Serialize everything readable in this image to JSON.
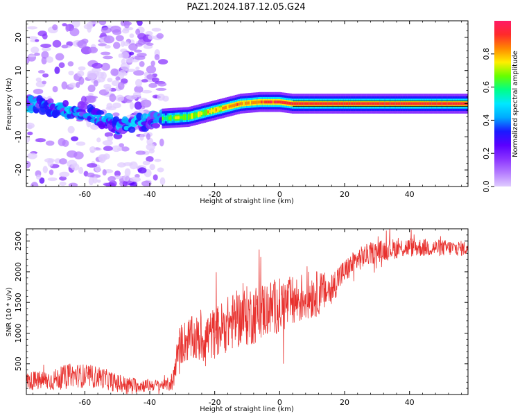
{
  "title": "PAZ1.2024.187.12.05.G24",
  "colors": {
    "snr_line": "#e8312e",
    "axis": "#000000",
    "colormap": [
      "#e0ccff",
      "#b47bff",
      "#8a33ff",
      "#5a00ff",
      "#1a1aff",
      "#00aaff",
      "#00e8ff",
      "#00ff88",
      "#66ff00",
      "#ffee00",
      "#ff8800",
      "#ff2a2a",
      "#ff1a66"
    ]
  },
  "chart_data": [
    {
      "type": "heatmap",
      "name": "spectrogram",
      "xlabel": "Height of straight line (km)",
      "ylabel": "Frequency (Hz)",
      "xlim": [
        -78,
        58
      ],
      "ylim": [
        -25,
        25
      ],
      "xticks": [
        -60,
        -40,
        -20,
        0,
        20,
        40
      ],
      "yticks": [
        -20,
        -10,
        0,
        10,
        20
      ],
      "colorbar": {
        "label": "Normalized spectral amplitude",
        "range": [
          0.0,
          1.0
        ],
        "ticks": [
          0.0,
          0.2,
          0.4,
          0.6,
          0.8
        ]
      },
      "ridge": {
        "description_points_km_hz": [
          [
            -78,
            0
          ],
          [
            -60,
            -2.5
          ],
          [
            -50,
            -7
          ],
          [
            -36,
            -4.5
          ],
          [
            -28,
            -4
          ],
          [
            -20,
            -2
          ],
          [
            -12,
            0
          ],
          [
            -6,
            0.5
          ],
          [
            0,
            0.5
          ],
          [
            4,
            0
          ],
          [
            58,
            0
          ]
        ]
      },
      "noise_region_km": [
        -78,
        -36
      ]
    },
    {
      "type": "line",
      "name": "snr",
      "xlabel": "Height of straight line (km)",
      "ylabel": "SNR (10 * v/v)",
      "xlim": [
        -78,
        58
      ],
      "ylim": [
        0,
        2700
      ],
      "xticks": [
        -60,
        -40,
        -20,
        0,
        20,
        40
      ],
      "yticks": [
        500,
        1000,
        1500,
        2000,
        2500
      ],
      "trend_points": [
        [
          -78,
          220
        ],
        [
          -70,
          230
        ],
        [
          -65,
          320
        ],
        [
          -60,
          300
        ],
        [
          -55,
          280
        ],
        [
          -50,
          180
        ],
        [
          -45,
          150
        ],
        [
          -40,
          150
        ],
        [
          -35,
          160
        ],
        [
          -33,
          200
        ],
        [
          -31,
          800
        ],
        [
          -28,
          900
        ],
        [
          -24,
          900
        ],
        [
          -20,
          1000
        ],
        [
          -16,
          1150
        ],
        [
          -12,
          1250
        ],
        [
          -8,
          1300
        ],
        [
          -4,
          1400
        ],
        [
          0,
          1450
        ],
        [
          4,
          1500
        ],
        [
          8,
          1600
        ],
        [
          12,
          1650
        ],
        [
          16,
          1700
        ],
        [
          18,
          1900
        ],
        [
          20,
          2000
        ],
        [
          24,
          2200
        ],
        [
          28,
          2300
        ],
        [
          32,
          2350
        ],
        [
          36,
          2380
        ],
        [
          40,
          2400
        ],
        [
          48,
          2390
        ],
        [
          58,
          2380
        ]
      ],
      "noise_amplitude": [
        [
          -78,
          150
        ],
        [
          -60,
          200
        ],
        [
          -35,
          80
        ],
        [
          -30,
          350
        ],
        [
          -10,
          500
        ],
        [
          10,
          400
        ],
        [
          20,
          200
        ],
        [
          58,
          120
        ]
      ]
    }
  ]
}
